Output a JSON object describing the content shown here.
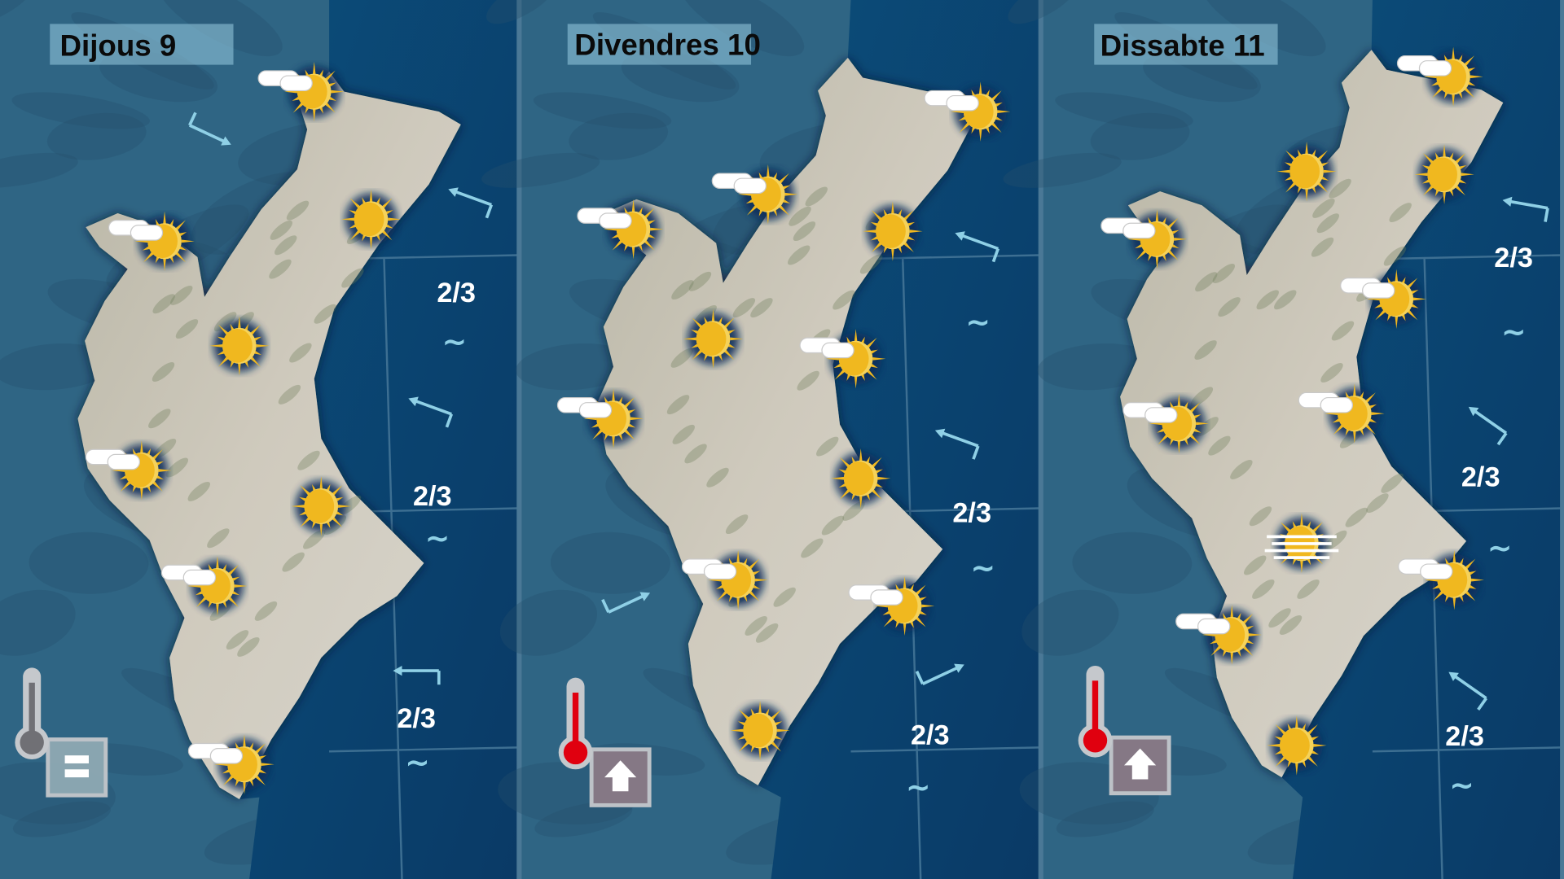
{
  "panels": [
    {
      "title": "Dijous 9",
      "temperature_trend": "equal",
      "forecast_icons": [
        "sun-cloud",
        "sun-cloud",
        "sun",
        "sun",
        "sun-cloud",
        "sun",
        "sun-cloud",
        "sun-cloud"
      ],
      "sea_state": [
        "2/3",
        "2/3",
        "2/3"
      ],
      "wind_arrows": 4
    },
    {
      "title": "Divendres 10",
      "temperature_trend": "up",
      "forecast_icons": [
        "sun-cloud",
        "sun-cloud",
        "sun-cloud",
        "sun",
        "sun",
        "sun-cloud",
        "sun-cloud",
        "sun",
        "sun-cloud",
        "sun-cloud",
        "sun"
      ],
      "sea_state": [
        "2/3",
        "2/3"
      ],
      "wind_arrows": 4
    },
    {
      "title": "Dissabte 11",
      "temperature_trend": "up",
      "forecast_icons": [
        "sun-cloud",
        "sun",
        "sun",
        "sun-cloud",
        "sun-cloud",
        "sun-cloud",
        "sun-cloud",
        "sun-haze",
        "sun-cloud",
        "sun-cloud",
        "sun"
      ],
      "sea_state": [
        "2/3",
        "2/3",
        "2/3"
      ],
      "wind_arrows": 3
    }
  ],
  "colors": {
    "sun": "#f0b81f",
    "sun_rays": "#f0b81f",
    "sun_glow": "#0f2d5c",
    "thermo_up": "#e0000f",
    "thermo_equal": "#707075",
    "wind": "#8fd0e6",
    "sea": "#0d4470",
    "land_sea_bg": "#2f6584"
  }
}
